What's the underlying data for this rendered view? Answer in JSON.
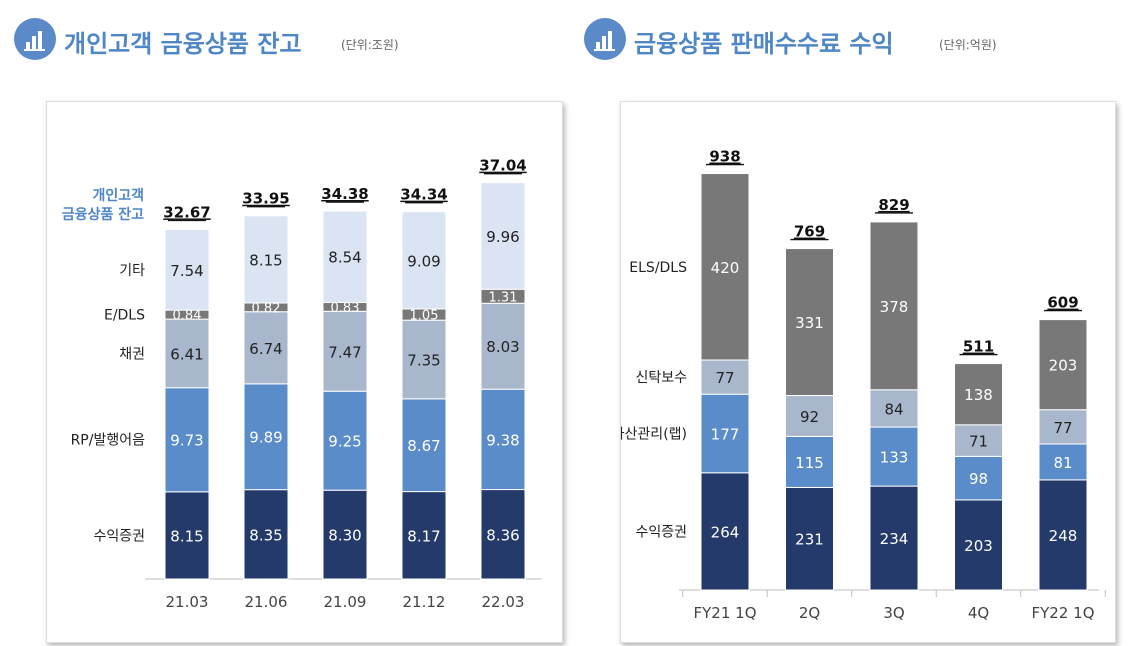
{
  "left": {
    "title": "개인고객 금융상품 잔고",
    "unit": "(단위:조원)",
    "icon": "bar-chart-icon"
  },
  "right": {
    "title": "금융상품 판매수수료 수익",
    "unit": "(단위:억원)",
    "icon": "bar-chart-icon"
  },
  "colors": {
    "navy": "#233a6a",
    "blue": "#5b8cca",
    "gray_blue": "#a9b7cc",
    "dark_gray": "#787878",
    "light_blue": "#dbe4f3",
    "accent": "#4e86c6"
  },
  "chart_data": [
    {
      "type": "bar",
      "stacked": true,
      "title": "개인고객 금융상품 잔고",
      "unit": "(단위:조원)",
      "total_label": [
        "개인고객",
        "금융상품 잔고"
      ],
      "categories": [
        "21.03",
        "21.06",
        "21.09",
        "21.12",
        "22.03"
      ],
      "series": [
        {
          "name": "수익증권",
          "values": [
            "8.15",
            "8.35",
            "8.30",
            "8.17",
            "8.36"
          ],
          "color": "#233a6a",
          "text_color": "#ffffff"
        },
        {
          "name": "RP/발행어음",
          "values": [
            "9.73",
            "9.89",
            "9.25",
            "8.67",
            "9.38"
          ],
          "color": "#5b8cca",
          "text_color": "#ffffff"
        },
        {
          "name": "채권",
          "values": [
            "6.41",
            "6.74",
            "7.47",
            "7.35",
            "8.03"
          ],
          "color": "#a9b7cc",
          "text_color": "#222222"
        },
        {
          "name": "E/DLS",
          "values": [
            "0.84",
            "0.82",
            "0.83",
            "1.05",
            "1.31"
          ],
          "color": "#787878",
          "text_color": "#ffffff"
        },
        {
          "name": "기타",
          "values": [
            "7.54",
            "8.15",
            "8.54",
            "9.09",
            "9.96"
          ],
          "color": "#dbe4f3",
          "text_color": "#222222"
        }
      ],
      "totals": [
        "32.67",
        "33.95",
        "34.38",
        "34.34",
        "37.04"
      ],
      "ylim": [
        0,
        40
      ]
    },
    {
      "type": "bar",
      "stacked": true,
      "title": "금융상품 판매수수료 수익",
      "unit": "(단위:억원)",
      "categories": [
        "FY21 1Q",
        "2Q",
        "3Q",
        "4Q",
        "FY22 1Q"
      ],
      "series": [
        {
          "name": "수익증권",
          "values": [
            "264",
            "231",
            "234",
            "203",
            "248"
          ],
          "color": "#233a6a",
          "text_color": "#ffffff"
        },
        {
          "name": "자산관리(랩)",
          "values": [
            "177",
            "115",
            "133",
            "98",
            "81"
          ],
          "color": "#5b8cca",
          "text_color": "#ffffff"
        },
        {
          "name": "신탁보수",
          "values": [
            "77",
            "92",
            "84",
            "71",
            "77"
          ],
          "color": "#a9b7cc",
          "text_color": "#222222"
        },
        {
          "name": "ELS/DLS",
          "values": [
            "420",
            "331",
            "378",
            "138",
            "203"
          ],
          "color": "#787878",
          "text_color": "#ffffff"
        }
      ],
      "totals": [
        "938",
        "769",
        "829",
        "511",
        "609"
      ],
      "ylim": [
        0,
        1000
      ]
    }
  ]
}
